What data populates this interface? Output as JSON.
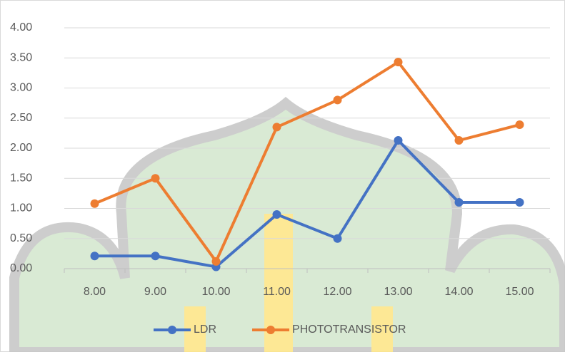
{
  "chart_data": {
    "type": "line",
    "categories": [
      "8.00",
      "9.00",
      "10.00",
      "11.00",
      "12.00",
      "13.00",
      "14.00",
      "15.00"
    ],
    "series": [
      {
        "name": "LDR",
        "color": "#4472c4",
        "values": [
          0.21,
          0.21,
          0.03,
          0.9,
          0.5,
          2.13,
          1.1,
          1.1
        ]
      },
      {
        "name": "PHOTOTRANSISTOR",
        "color": "#ed7d31",
        "values": [
          1.08,
          1.5,
          0.12,
          2.35,
          2.8,
          3.43,
          2.13,
          2.39
        ]
      }
    ],
    "ylim": [
      0,
      4
    ],
    "yticks": [
      {
        "value": 0,
        "label": "0.00"
      },
      {
        "value": 0.5,
        "label": "0.50"
      },
      {
        "value": 1,
        "label": "1.00"
      },
      {
        "value": 1.5,
        "label": "1.50"
      },
      {
        "value": 2,
        "label": "2.00"
      },
      {
        "value": 2.5,
        "label": "2.50"
      },
      {
        "value": 3,
        "label": "3.00"
      },
      {
        "value": 3.5,
        "label": "3.50"
      },
      {
        "value": 4,
        "label": "4.00"
      }
    ],
    "grid": true,
    "legend": "bottom"
  }
}
